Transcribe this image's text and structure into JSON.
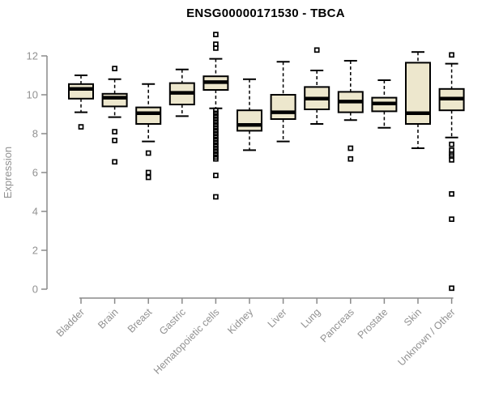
{
  "chart_data": {
    "type": "boxplot",
    "title": "ENSG00000171530 - TBCA",
    "xlabel": "",
    "ylabel": "Expression",
    "ylim": [
      0,
      12
    ],
    "yticks": [
      0,
      2,
      4,
      6,
      8,
      10,
      12
    ],
    "grid": false,
    "legend": null,
    "colors": {
      "box_fill": "#EDE7CD",
      "box_stroke": "#000000",
      "median": "#000000",
      "whisker": "#000000",
      "axis": "#8a8a8a",
      "tick_label": "#919191",
      "title": "#000000",
      "background": "#ffffff"
    },
    "categories": [
      "Bladder",
      "Brain",
      "Breast",
      "Gastric",
      "Hematopoietic cells",
      "Kidney",
      "Liver",
      "Lung",
      "Pancreas",
      "Prostate",
      "Skin",
      "Unknown / Other"
    ],
    "boxes": [
      {
        "category": "Bladder",
        "whisker_low": 9.1,
        "q1": 9.8,
        "median": 10.3,
        "q3": 10.55,
        "whisker_high": 11.0,
        "outliers": [
          8.35
        ]
      },
      {
        "category": "Brain",
        "whisker_low": 8.85,
        "q1": 9.4,
        "median": 9.85,
        "q3": 10.05,
        "whisker_high": 10.8,
        "outliers": [
          11.35,
          8.1,
          7.65,
          6.55
        ]
      },
      {
        "category": "Breast",
        "whisker_low": 7.6,
        "q1": 8.5,
        "median": 9.05,
        "q3": 9.35,
        "whisker_high": 10.55,
        "outliers": [
          7.0,
          6.0,
          5.75
        ]
      },
      {
        "category": "Gastric",
        "whisker_low": 8.9,
        "q1": 9.5,
        "median": 10.1,
        "q3": 10.6,
        "whisker_high": 11.3,
        "outliers": []
      },
      {
        "category": "Hematopoietic cells",
        "whisker_low": 9.3,
        "q1": 10.25,
        "median": 10.65,
        "q3": 10.95,
        "whisker_high": 11.85,
        "outliers": [
          13.1,
          12.6,
          12.4,
          9.2,
          9.05,
          8.9,
          8.75,
          8.6,
          8.45,
          8.3,
          8.15,
          8.0,
          7.85,
          7.7,
          7.55,
          7.4,
          7.25,
          7.1,
          6.95,
          6.8,
          6.7,
          5.85,
          4.75
        ]
      },
      {
        "category": "Kidney",
        "whisker_low": 7.15,
        "q1": 8.15,
        "median": 8.45,
        "q3": 9.2,
        "whisker_high": 10.8,
        "outliers": []
      },
      {
        "category": "Liver",
        "whisker_low": 7.6,
        "q1": 8.75,
        "median": 9.1,
        "q3": 10.0,
        "whisker_high": 11.7,
        "outliers": []
      },
      {
        "category": "Lung",
        "whisker_low": 8.5,
        "q1": 9.25,
        "median": 9.8,
        "q3": 10.4,
        "whisker_high": 11.25,
        "outliers": [
          12.3
        ]
      },
      {
        "category": "Pancreas",
        "whisker_low": 8.7,
        "q1": 9.1,
        "median": 9.65,
        "q3": 10.15,
        "whisker_high": 11.75,
        "outliers": [
          7.25,
          6.7
        ]
      },
      {
        "category": "Prostate",
        "whisker_low": 8.3,
        "q1": 9.15,
        "median": 9.55,
        "q3": 9.85,
        "whisker_high": 10.75,
        "outliers": []
      },
      {
        "category": "Skin",
        "whisker_low": 7.25,
        "q1": 8.5,
        "median": 9.05,
        "q3": 11.65,
        "whisker_high": 12.2,
        "outliers": []
      },
      {
        "category": "Unknown / Other",
        "whisker_low": 7.8,
        "q1": 9.2,
        "median": 9.8,
        "q3": 10.3,
        "whisker_high": 11.6,
        "outliers": [
          12.05,
          7.45,
          7.15,
          6.95,
          6.85,
          6.65,
          4.9,
          3.6,
          0.05
        ]
      }
    ]
  }
}
